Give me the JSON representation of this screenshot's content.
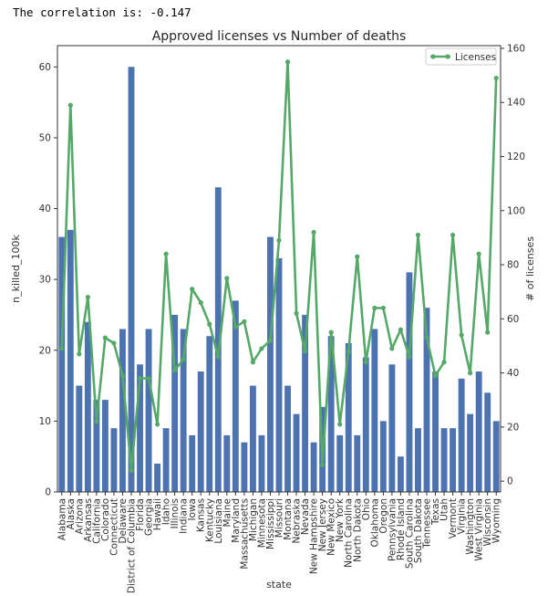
{
  "output": {
    "correlation_text": "The correlation is: -0.147"
  },
  "colors": {
    "bar": "#4c72b0",
    "line": "#55a868",
    "axis": "#333333"
  },
  "chart_data": {
    "type": "bar",
    "title": "Approved licenses vs Number of deaths",
    "xlabel": "state",
    "ylabel": "n_killed_100k",
    "y2label": "# of licenses",
    "ylim": [
      0,
      63
    ],
    "y2lim": [
      -4,
      161
    ],
    "yticks": [
      0,
      10,
      20,
      30,
      40,
      50,
      60
    ],
    "y2ticks": [
      0,
      20,
      40,
      60,
      80,
      100,
      120,
      140,
      160
    ],
    "legend": {
      "placement": "top-right",
      "label": "Licenses"
    },
    "grid": false,
    "categories": [
      "Alabama",
      "Alaska",
      "Arizona",
      "Arkansas",
      "California",
      "Colorado",
      "Connecticut",
      "Delaware",
      "District of Columbia",
      "Florida",
      "Georgia",
      "Hawaii",
      "Idaho",
      "Illinois",
      "Indiana",
      "Iowa",
      "Kansas",
      "Kentucky",
      "Louisiana",
      "Maine",
      "Maryland",
      "Massachusetts",
      "Michigan",
      "Minnesota",
      "Mississippi",
      "Missouri",
      "Montana",
      "Nebraska",
      "Nevada",
      "New Hampshire",
      "New Jersey",
      "New Mexico",
      "New York",
      "North Carolina",
      "North Dakota",
      "Ohio",
      "Oklahoma",
      "Oregon",
      "Pennsylvania",
      "Rhode Island",
      "South Carolina",
      "South Dakota",
      "Tennessee",
      "Texas",
      "Utah",
      "Vermont",
      "Virginia",
      "Washington",
      "West Virginia",
      "Wisconsin",
      "Wyoming"
    ],
    "series": [
      {
        "type": "bar",
        "axis": "left",
        "values": [
          36,
          37,
          15,
          24,
          13,
          13,
          9,
          23,
          60,
          18,
          23,
          4,
          9,
          25,
          23,
          8,
          17,
          22,
          43,
          8,
          27,
          7,
          15,
          8,
          36,
          33,
          15,
          11,
          25,
          7,
          12,
          22,
          8,
          21,
          8,
          19,
          23,
          10,
          18,
          5,
          31,
          9,
          26,
          17,
          9,
          9,
          16,
          11,
          17,
          14,
          10
        ]
      },
      {
        "type": "line",
        "axis": "right",
        "name": "Licenses",
        "values": [
          49,
          139,
          47,
          68,
          22,
          53,
          51,
          39,
          4,
          38,
          38,
          21,
          84,
          41,
          45,
          71,
          66,
          58,
          46,
          75,
          57,
          59,
          44,
          49,
          52,
          89,
          155,
          62,
          48,
          92,
          6,
          55,
          21,
          48,
          83,
          44,
          64,
          64,
          49,
          56,
          46,
          91,
          53,
          39,
          44,
          91,
          54,
          40,
          84,
          55,
          149
        ]
      }
    ]
  }
}
